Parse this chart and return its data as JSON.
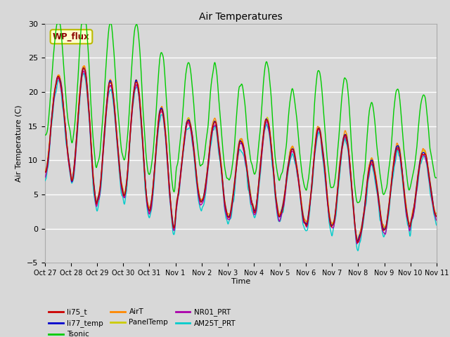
{
  "title": "Air Temperatures",
  "xlabel": "Time",
  "ylabel": "Air Temperature (C)",
  "ylim": [
    -5,
    30
  ],
  "background_color": "#d8d8d8",
  "plot_bg_color": "#d8d8d8",
  "grid_color": "white",
  "series_colors": {
    "li75_t": "#cc0000",
    "li77_temp": "#0000cc",
    "Tsonic": "#00cc00",
    "AirT": "#ff8800",
    "PanelTemp": "#cccc00",
    "NR01_PRT": "#aa00aa",
    "AM25T_PRT": "#00cccc"
  },
  "series_order": [
    "AM25T_PRT",
    "NR01_PRT",
    "PanelTemp",
    "AirT",
    "li77_temp",
    "li75_t",
    "Tsonic"
  ],
  "x_tick_labels": [
    "Oct 27",
    "Oct 28",
    "Oct 29",
    "Oct 30",
    "Oct 31",
    "Nov 1",
    "Nov 2",
    "Nov 3",
    "Nov 4",
    "Nov 5",
    "Nov 6",
    "Nov 7",
    "Nov 8",
    "Nov 9",
    "Nov 10",
    "Nov 11"
  ],
  "wp_flux_label": "WP_flux",
  "yticks": [
    -5,
    0,
    5,
    10,
    15,
    20,
    25,
    30
  ],
  "line_width": 1.0,
  "figsize": [
    6.4,
    4.8
  ],
  "dpi": 100
}
